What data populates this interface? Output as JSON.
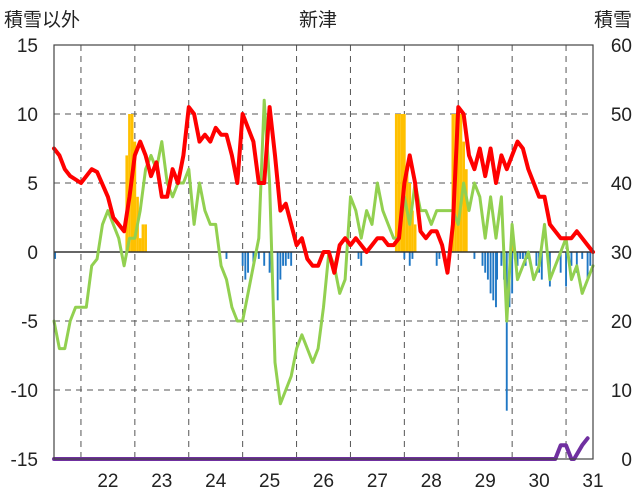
{
  "chart_data": {
    "type": "line",
    "title": "新津",
    "y_left_label": "積雪以外",
    "y_right_label": "積雪",
    "y_left_range": [
      -15,
      15
    ],
    "y_right_range": [
      0,
      60
    ],
    "y_left_ticks": [
      "15",
      "10",
      "5",
      "0",
      "-5",
      "-10",
      "-15"
    ],
    "y_right_ticks": [
      "60",
      "50",
      "40",
      "30",
      "20",
      "10",
      "0"
    ],
    "x_range": [
      21.5,
      31.5
    ],
    "x_ticks": [
      "22",
      "23",
      "24",
      "25",
      "26",
      "27",
      "28",
      "29",
      "30",
      "31"
    ],
    "grid": true,
    "colors": {
      "max_temp": "#ff0000",
      "min_temp": "#92d050",
      "snowfall": "#ffc000",
      "precip_neg": "#1f77c4",
      "snow_depth": "#7030a0"
    },
    "series": [
      {
        "key": "max_temp",
        "axis": "left",
        "x": [
          21.5,
          21.6,
          21.7,
          21.8,
          22.0,
          22.2,
          22.3,
          22.5,
          22.6,
          22.7,
          22.8,
          22.9,
          23.0,
          23.1,
          23.2,
          23.3,
          23.4,
          23.5,
          23.6,
          23.7,
          23.8,
          23.9,
          24.0,
          24.1,
          24.2,
          24.3,
          24.4,
          24.5,
          24.6,
          24.7,
          24.8,
          24.9,
          25.0,
          25.1,
          25.2,
          25.3,
          25.4,
          25.5,
          25.6,
          25.7,
          25.8,
          25.9,
          26.0,
          26.1,
          26.2,
          26.3,
          26.4,
          26.5,
          26.6,
          26.7,
          26.8,
          26.9,
          27.0,
          27.1,
          27.2,
          27.3,
          27.4,
          27.5,
          27.6,
          27.7,
          27.8,
          27.9,
          28.0,
          28.1,
          28.2,
          28.3,
          28.4,
          28.5,
          28.6,
          28.7,
          28.8,
          28.9,
          29.0,
          29.1,
          29.2,
          29.3,
          29.4,
          29.5,
          29.6,
          29.7,
          29.8,
          29.9,
          30.0,
          30.1,
          30.2,
          30.3,
          30.4,
          30.5,
          30.6,
          30.7,
          30.8,
          30.9,
          31.0,
          31.1,
          31.2,
          31.3,
          31.4,
          31.5
        ],
        "y": [
          7.5,
          7,
          6,
          5.5,
          5,
          6,
          5.8,
          4,
          2.5,
          2,
          1.5,
          4,
          7,
          8,
          7,
          5.5,
          6.5,
          4,
          4,
          6,
          5,
          7,
          10.5,
          10,
          8,
          8.5,
          8,
          9,
          8.5,
          8.5,
          7,
          5,
          10,
          9,
          8,
          5,
          5,
          10.5,
          7,
          3,
          3.5,
          2,
          0.5,
          1,
          -0.5,
          -1,
          -1,
          0,
          0,
          -1.5,
          0.5,
          1,
          0.5,
          1,
          0.5,
          0,
          0.5,
          1,
          1,
          0.5,
          0.5,
          1,
          5,
          7,
          5,
          1.5,
          1,
          1.5,
          1.5,
          0.5,
          -1.5,
          2,
          10.5,
          10,
          7,
          6,
          7.5,
          5.5,
          7.5,
          5,
          7,
          6,
          7,
          8,
          7.5,
          6,
          5,
          4,
          4,
          2,
          1.5,
          1,
          1,
          1,
          1.5,
          1,
          0.5,
          0
        ]
      },
      {
        "key": "min_temp",
        "axis": "left",
        "x": [
          21.5,
          21.6,
          21.7,
          21.8,
          21.9,
          22.0,
          22.1,
          22.2,
          22.3,
          22.4,
          22.5,
          22.6,
          22.7,
          22.8,
          22.9,
          23.0,
          23.1,
          23.2,
          23.3,
          23.4,
          23.5,
          23.6,
          23.7,
          23.8,
          23.9,
          24.0,
          24.1,
          24.2,
          24.3,
          24.4,
          24.5,
          24.6,
          24.7,
          24.8,
          24.9,
          25.0,
          25.1,
          25.2,
          25.3,
          25.4,
          25.5,
          25.6,
          25.7,
          25.8,
          25.9,
          26.0,
          26.1,
          26.2,
          26.3,
          26.4,
          26.5,
          26.6,
          26.7,
          26.8,
          26.9,
          27.0,
          27.1,
          27.2,
          27.3,
          27.4,
          27.5,
          27.6,
          27.7,
          27.8,
          27.9,
          28.0,
          28.1,
          28.2,
          28.3,
          28.4,
          28.5,
          28.6,
          28.7,
          28.8,
          28.9,
          29.0,
          29.1,
          29.2,
          29.3,
          29.4,
          29.5,
          29.6,
          29.7,
          29.8,
          29.9,
          30.0,
          30.1,
          30.2,
          30.3,
          30.4,
          30.5,
          30.6,
          30.7,
          30.8,
          30.9,
          31.0,
          31.1,
          31.2,
          31.3,
          31.4,
          31.5
        ],
        "y": [
          -5,
          -7,
          -7,
          -5,
          -4,
          -4,
          -4,
          -1,
          -0.5,
          2,
          3,
          2,
          1,
          -1,
          1,
          1,
          3,
          6,
          7,
          6,
          8,
          5,
          4,
          5,
          5,
          6,
          2,
          5,
          3,
          2,
          2,
          -1,
          -2,
          -4,
          -5,
          -5,
          -3,
          -1,
          1,
          11,
          5,
          -8,
          -11,
          -10,
          -9,
          -7,
          -6,
          -7,
          -8,
          -7,
          -4,
          0,
          -1,
          -3,
          -2,
          4,
          3,
          1,
          3,
          2,
          5,
          3,
          2,
          1,
          1,
          4,
          2,
          5,
          3,
          3,
          2,
          3,
          3,
          3,
          3,
          2,
          5,
          3,
          5,
          4,
          1,
          4,
          1,
          4,
          -5,
          2,
          -2,
          -1,
          0,
          -2,
          -1,
          2,
          -2,
          -1,
          0,
          1,
          -2,
          -1,
          -3,
          -2,
          -1
        ]
      },
      {
        "key": "snow_depth",
        "axis": "right",
        "x": [
          21.5,
          30.8,
          30.85,
          30.9,
          31.0,
          31.05,
          31.1,
          31.15,
          31.3,
          31.4
        ],
        "y": [
          0,
          0,
          1,
          2,
          2,
          1,
          0,
          0,
          2,
          3
        ]
      }
    ],
    "bars": [
      {
        "key": "snowfall",
        "axis": "left",
        "width": 0.05,
        "x": [
          22.85,
          22.9,
          22.95,
          23.0,
          23.05,
          23.1,
          23.15,
          23.2,
          27.85,
          27.9,
          27.95,
          28.0,
          28.05,
          28.1,
          28.15,
          28.2,
          28.9,
          28.95,
          29.0,
          29.05,
          29.1,
          29.15,
          30.0
        ],
        "y": [
          7,
          10,
          10,
          8,
          4,
          1,
          2,
          2,
          10,
          10,
          10,
          10,
          6,
          5,
          3,
          2,
          10,
          10,
          10,
          10,
          8,
          6,
          2
        ]
      },
      {
        "key": "precip_neg",
        "axis": "left",
        "width": 0.035,
        "x": [
          21.52,
          24.7,
          25.0,
          25.05,
          25.1,
          25.2,
          25.3,
          25.4,
          25.5,
          25.65,
          25.7,
          25.75,
          25.8,
          25.85,
          25.9,
          27.15,
          27.2,
          28.0,
          28.1,
          28.15,
          28.6,
          28.65,
          29.3,
          29.45,
          29.5,
          29.55,
          29.6,
          29.65,
          29.7,
          29.72,
          29.8,
          29.85,
          29.9,
          29.95,
          30.0,
          30.05,
          30.1,
          30.15,
          30.2,
          30.25,
          30.3,
          30.45,
          30.5,
          30.55,
          30.7,
          30.9,
          31.0,
          31.1,
          31.2,
          31.3,
          31.4,
          31.45
        ],
        "y": [
          -0.5,
          -0.5,
          -1,
          -2,
          -1.5,
          -1,
          -0.5,
          -1,
          -1.5,
          -3.5,
          -2,
          -1,
          -1,
          -0.5,
          -1,
          -0.5,
          -1,
          -0.5,
          -1,
          -0.5,
          -1,
          -0.5,
          -0.5,
          -1,
          -1.5,
          -2,
          -3,
          -3.5,
          -4,
          -2,
          -1,
          -2,
          -11.5,
          -4,
          -3,
          -0.5,
          -1,
          -0.5,
          -0.5,
          -1,
          -0.5,
          -1,
          -1.5,
          -2,
          -2.5,
          -1.5,
          -2.5,
          -1,
          -1.5,
          -0.5,
          -2,
          -1
        ]
      }
    ]
  }
}
